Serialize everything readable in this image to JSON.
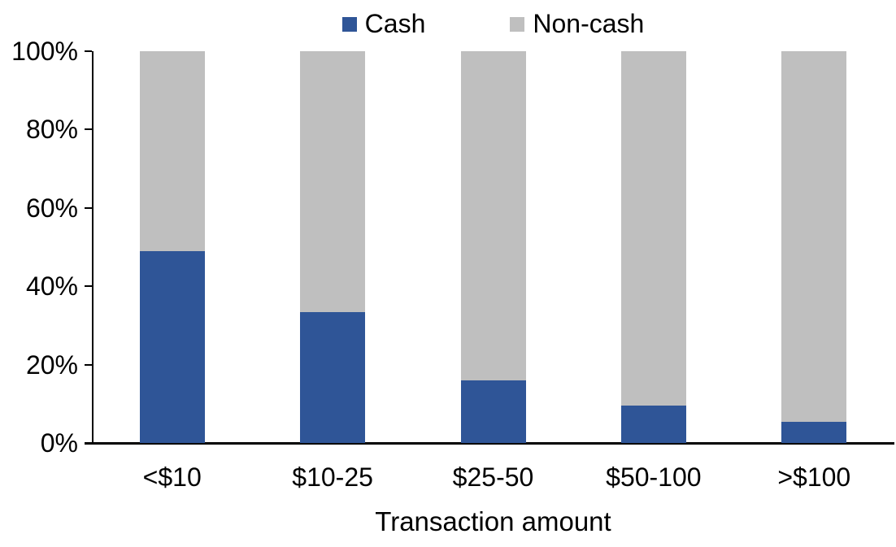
{
  "chart_data": {
    "type": "bar",
    "stacked": true,
    "title": "",
    "xlabel": "Transaction amount",
    "ylabel": "",
    "categories": [
      "<$10",
      "$10-25",
      "$25-50",
      "$50-100",
      ">$100"
    ],
    "series": [
      {
        "name": "Cash",
        "color": "#2F5597",
        "values": [
          49,
          33.5,
          16,
          9.5,
          5.5
        ]
      },
      {
        "name": "Non-cash",
        "color": "#BFBFBF",
        "values": [
          51,
          66.5,
          84,
          90.5,
          94.5
        ]
      }
    ],
    "ylim": [
      0,
      100
    ],
    "yticks": [
      0,
      20,
      40,
      60,
      80,
      100
    ],
    "ytick_suffix": "%",
    "legend_position": "top",
    "grid": false,
    "axis_color": "#000000",
    "text_color": "#000000",
    "background_color": "#FFFFFF"
  }
}
